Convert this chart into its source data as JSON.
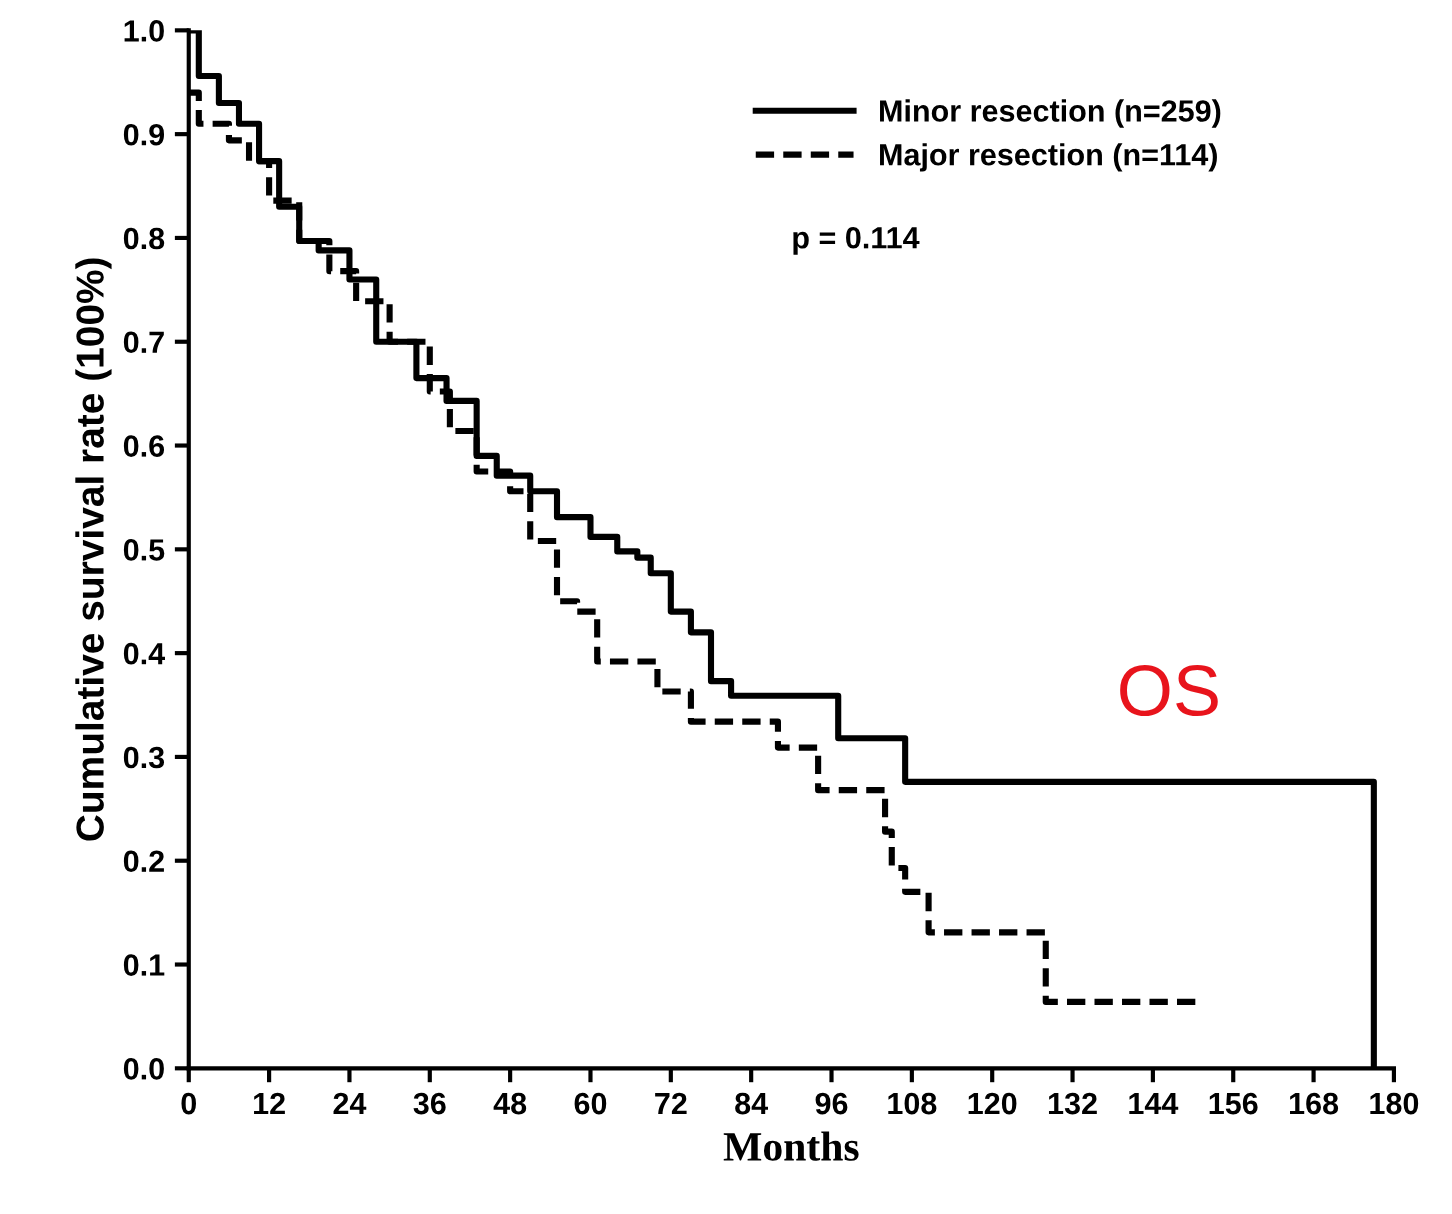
{
  "chart_data": {
    "type": "step",
    "xlabel": "Months",
    "ylabel": "Cumulative survival rate (100%)",
    "xlim": [
      0,
      180
    ],
    "ylim": [
      0,
      1.0
    ],
    "xticks": [
      0,
      12,
      24,
      36,
      48,
      60,
      72,
      84,
      96,
      108,
      120,
      132,
      144,
      156,
      168,
      180
    ],
    "yticks": [
      {
        "value": 0,
        "label": "0.0"
      },
      0.1,
      0.2,
      0.3,
      0.4,
      0.5,
      0.6,
      0.7,
      0.8,
      0.9,
      {
        "value": 1,
        "label": "1.0"
      }
    ],
    "grid": false,
    "legend": "top right",
    "marker": "none",
    "series": [
      {
        "name": "Minor resection (n=259)",
        "color": "#000000",
        "line_style": "solid",
        "x": [
          0,
          1.5,
          4.5,
          7.5,
          10.5,
          13.5,
          16.5,
          19.4,
          24,
          28,
          34,
          38.5,
          43,
          46,
          51,
          55,
          60,
          64,
          67,
          69,
          72,
          75,
          78,
          81,
          97,
          107,
          177,
          177
        ],
        "values": [
          1.0,
          0.956,
          0.93,
          0.91,
          0.874,
          0.83,
          0.797,
          0.788,
          0.76,
          0.7,
          0.665,
          0.643,
          0.59,
          0.571,
          0.556,
          0.531,
          0.512,
          0.498,
          0.492,
          0.477,
          0.44,
          0.42,
          0.373,
          0.359,
          0.318,
          0.276,
          0.276,
          0.0
        ]
      },
      {
        "name": "Major resection (n=114)",
        "color": "#000000",
        "line_style": "dashed",
        "x": [
          0,
          1.5,
          6,
          9,
          12,
          16.5,
          21,
          25,
          30,
          36,
          39,
          43,
          48,
          51,
          55,
          58,
          61,
          70,
          75,
          88,
          94,
          104,
          105,
          107,
          110.5,
          128,
          151
        ],
        "values": [
          0.94,
          0.91,
          0.894,
          0.874,
          0.836,
          0.797,
          0.768,
          0.739,
          0.7,
          0.652,
          0.614,
          0.575,
          0.556,
          0.508,
          0.45,
          0.44,
          0.392,
          0.363,
          0.334,
          0.309,
          0.268,
          0.228,
          0.193,
          0.17,
          0.131,
          0.064,
          0.064
        ]
      }
    ],
    "annotations": [
      "p = 0.114",
      "OS"
    ]
  }
}
